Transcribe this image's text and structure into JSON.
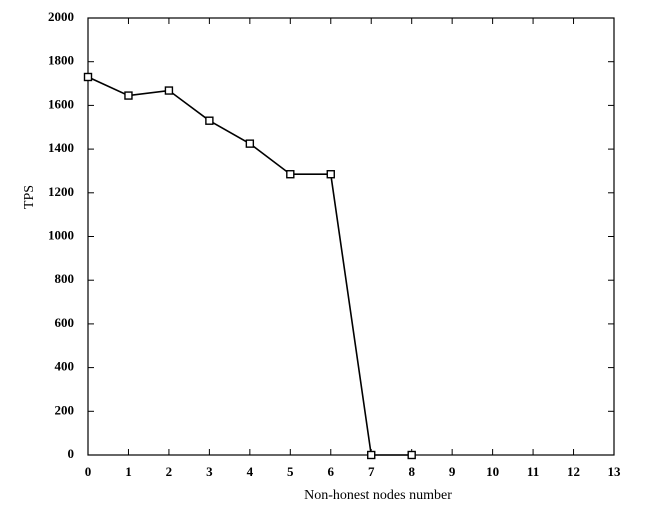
{
  "chart_data": {
    "type": "line",
    "x_label": "Non-honest nodes number",
    "y_label": "TPS",
    "x": [
      0,
      1,
      2,
      3,
      4,
      5,
      6,
      7,
      8
    ],
    "series": [
      {
        "color": "#000000",
        "values": [
          1730,
          1645,
          1668,
          1530,
          1425,
          1285,
          1285,
          0,
          0
        ]
      }
    ],
    "xlim": [
      0,
      13
    ],
    "xticks": [
      0,
      1,
      2,
      3,
      4,
      5,
      6,
      7,
      8,
      9,
      10,
      11,
      12,
      13
    ],
    "ylim": [
      0,
      2000
    ],
    "yticks": [
      0,
      200,
      400,
      600,
      800,
      1000,
      1200,
      1400,
      1600,
      1800,
      2000
    ],
    "grid": false
  }
}
